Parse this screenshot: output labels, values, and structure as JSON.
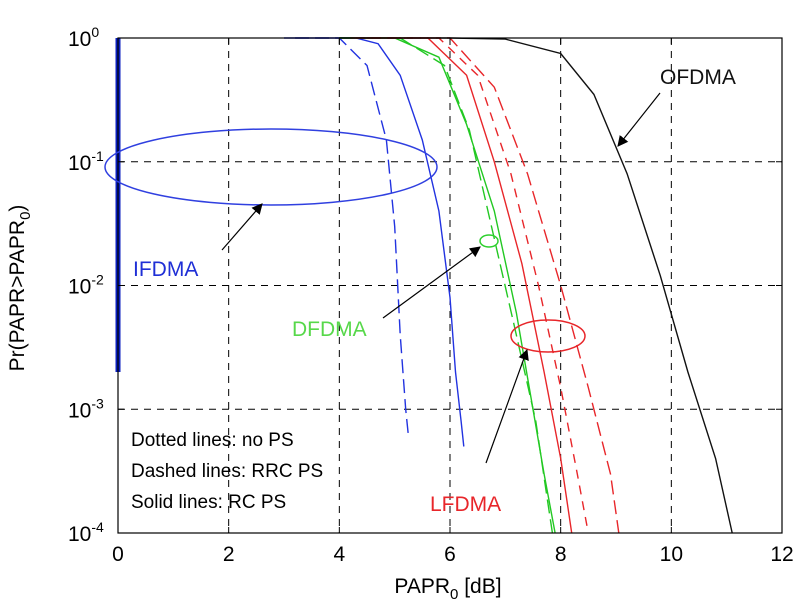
{
  "chart_data": {
    "type": "line",
    "xlabel": "PAPR",
    "xlabel_sub": "0",
    "xlabel_unit": " [dB]",
    "ylabel": "Pr(PAPR>PAPR",
    "ylabel_sub": "0",
    "ylabel_end": ")",
    "x_scale": "linear",
    "y_scale": "log",
    "xlim": [
      0,
      12
    ],
    "ylim": [
      0.0001,
      1
    ],
    "x_ticks": [
      0,
      2,
      4,
      6,
      8,
      10,
      12
    ],
    "y_ticks": [
      {
        "value": 1,
        "base": "10",
        "exp": "0"
      },
      {
        "value": 0.1,
        "base": "10",
        "exp": "-1"
      },
      {
        "value": 0.01,
        "base": "10",
        "exp": "-2"
      },
      {
        "value": 0.001,
        "base": "10",
        "exp": "-3"
      },
      {
        "value": 0.0001,
        "base": "10",
        "exp": "-4"
      }
    ],
    "grid": "dashed",
    "notes": [
      "Dotted lines: no PS",
      "Dashed lines: RRC PS",
      "Solid lines: RC PS"
    ],
    "annotations": [
      {
        "text": "IFDMA",
        "color": "#1f2fd6"
      },
      {
        "text": "DFDMA",
        "color": "#57d84a"
      },
      {
        "text": "LFDMA",
        "color": "#e8262a"
      },
      {
        "text": "OFDMA",
        "color": "#111111"
      }
    ],
    "series": [
      {
        "group": "IFDMA",
        "style": "dotted",
        "color": "#0b1fbf",
        "points": [
          [
            0.0,
            1
          ],
          [
            0.0,
            0.002
          ]
        ]
      },
      {
        "group": "IFDMA",
        "style": "solid",
        "color": "#2233e0",
        "points": [
          [
            3.0,
            1
          ],
          [
            4.3,
            1
          ],
          [
            4.7,
            0.9
          ],
          [
            5.1,
            0.5
          ],
          [
            5.5,
            0.15
          ],
          [
            5.8,
            0.04
          ],
          [
            6.0,
            0.008
          ],
          [
            6.1,
            0.002
          ],
          [
            6.2,
            0.0008
          ],
          [
            6.25,
            0.0005
          ]
        ]
      },
      {
        "group": "IFDMA",
        "style": "dashed",
        "color": "#2233e0",
        "points": [
          [
            3.2,
            1
          ],
          [
            4.0,
            1
          ],
          [
            4.5,
            0.6
          ],
          [
            4.85,
            0.15
          ],
          [
            5.0,
            0.03
          ],
          [
            5.1,
            0.004
          ],
          [
            5.2,
            0.001
          ],
          [
            5.25,
            0.0006
          ]
        ]
      },
      {
        "group": "DFDMA",
        "style": "solid",
        "color": "#22c822",
        "points": [
          [
            4.0,
            1
          ],
          [
            5.0,
            1
          ],
          [
            5.8,
            0.7
          ],
          [
            6.3,
            0.2
          ],
          [
            6.8,
            0.04
          ],
          [
            7.2,
            0.006
          ],
          [
            7.5,
            0.001
          ],
          [
            7.7,
            0.0003
          ],
          [
            7.9,
            0.0001
          ]
        ]
      },
      {
        "group": "DFDMA",
        "style": "dashed",
        "color": "#22c822",
        "points": [
          [
            4.0,
            1
          ],
          [
            5.1,
            1
          ],
          [
            5.9,
            0.6
          ],
          [
            6.35,
            0.18
          ],
          [
            6.75,
            0.03
          ],
          [
            7.15,
            0.005
          ],
          [
            7.55,
            0.0008
          ],
          [
            7.75,
            0.0002
          ],
          [
            7.85,
            0.0001
          ]
        ]
      },
      {
        "group": "LFDMA",
        "style": "solid",
        "color": "#e8262a",
        "points": [
          [
            4.2,
            1
          ],
          [
            5.6,
            1
          ],
          [
            6.3,
            0.5
          ],
          [
            6.8,
            0.1
          ],
          [
            7.3,
            0.015
          ],
          [
            7.7,
            0.002
          ],
          [
            8.0,
            0.0004
          ],
          [
            8.2,
            0.0001
          ]
        ]
      },
      {
        "group": "LFDMA",
        "style": "dashed",
        "color": "#e8262a",
        "points": [
          [
            4.5,
            1
          ],
          [
            6.0,
            1
          ],
          [
            6.8,
            0.4
          ],
          [
            7.4,
            0.08
          ],
          [
            8.0,
            0.01
          ],
          [
            8.5,
            0.0015
          ],
          [
            8.9,
            0.0003
          ],
          [
            9.05,
            0.0001
          ]
        ]
      },
      {
        "group": "LFDMA",
        "style": "dotted",
        "color": "#e8262a",
        "points": [
          [
            4.3,
            1
          ],
          [
            5.8,
            1
          ],
          [
            6.5,
            0.5
          ],
          [
            7.1,
            0.08
          ],
          [
            7.6,
            0.01
          ],
          [
            8.0,
            0.0015
          ],
          [
            8.3,
            0.0003
          ],
          [
            8.5,
            0.0001
          ]
        ]
      },
      {
        "group": "OFDMA",
        "style": "solid",
        "color": "#111111",
        "points": [
          [
            4.0,
            1
          ],
          [
            6.0,
            1
          ],
          [
            7.0,
            0.98
          ],
          [
            8.0,
            0.75
          ],
          [
            8.6,
            0.35
          ],
          [
            9.2,
            0.08
          ],
          [
            9.8,
            0.012
          ],
          [
            10.3,
            0.002
          ],
          [
            10.8,
            0.0004
          ],
          [
            11.1,
            0.0001
          ]
        ]
      }
    ]
  }
}
